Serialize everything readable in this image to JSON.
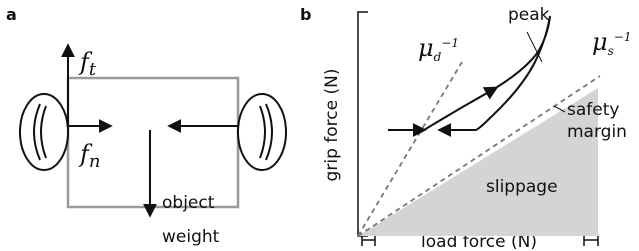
{
  "panel_a": {
    "label": "a",
    "ft": {
      "base": "f",
      "sub": "t"
    },
    "fn": {
      "base": "f",
      "sub": "n"
    },
    "weight": [
      "object",
      "weight"
    ]
  },
  "panel_b": {
    "label": "b",
    "y_label": "grip force (N)",
    "x_label": "load force (N)",
    "peak": "peak",
    "mu_d": {
      "base": "μ",
      "sub": "d",
      "sup": "−1"
    },
    "mu_s": {
      "base": "μ",
      "sub": "s",
      "sup": "−1"
    },
    "safety_margin": [
      "safety",
      "margin"
    ],
    "slippage": "slippage"
  }
}
